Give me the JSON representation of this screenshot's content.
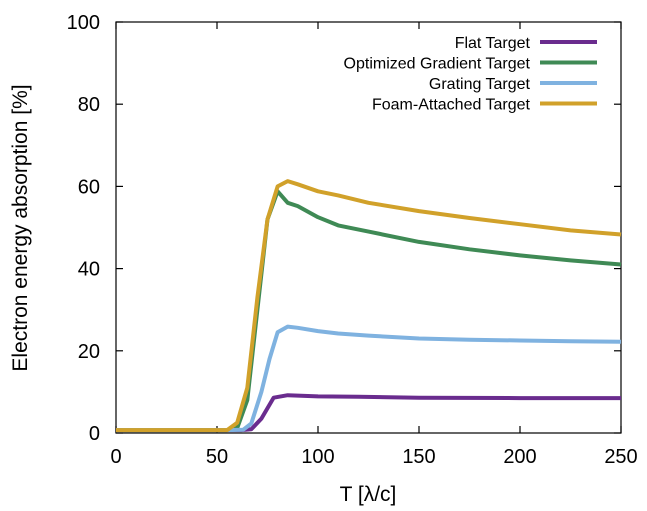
{
  "chart_data": {
    "type": "line",
    "title": "",
    "xlabel": "T [λ/c]",
    "ylabel": "Electron energy absorption [%]",
    "xlim": [
      0,
      250
    ],
    "ylim": [
      0,
      100
    ],
    "xticks": [
      0,
      50,
      100,
      150,
      200,
      250
    ],
    "yticks": [
      0,
      20,
      40,
      60,
      80,
      100
    ],
    "xtick_labels": [
      "0",
      "50",
      "100",
      "150",
      "200",
      "250"
    ],
    "ytick_labels": [
      "0",
      "20",
      "40",
      "60",
      "80",
      "100"
    ],
    "grid": false,
    "legend_position": "top-right",
    "series": [
      {
        "name": "Flat Target",
        "color": "#6a2c8e",
        "x": [
          0,
          55,
          62,
          67,
          72,
          78,
          85,
          100,
          120,
          150,
          200,
          250
        ],
        "y": [
          0.7,
          0.7,
          0.7,
          0.9,
          3.5,
          8.6,
          9.2,
          8.9,
          8.8,
          8.6,
          8.5,
          8.5
        ]
      },
      {
        "name": "Optimized Gradient Target",
        "color": "#3f8a55",
        "x": [
          0,
          55,
          60,
          65,
          70,
          75,
          80,
          85,
          90,
          100,
          110,
          125,
          150,
          175,
          200,
          225,
          250
        ],
        "y": [
          0.7,
          0.7,
          1.2,
          8,
          30,
          52,
          58.8,
          56,
          55.2,
          52.5,
          50.5,
          49,
          46.5,
          44.7,
          43.2,
          42,
          41
        ]
      },
      {
        "name": "Grating Target",
        "color": "#7fb2e0",
        "x": [
          0,
          55,
          63,
          67,
          72,
          76,
          80,
          85,
          90,
          100,
          110,
          125,
          150,
          175,
          200,
          225,
          250
        ],
        "y": [
          0.7,
          0.7,
          0.8,
          2.3,
          10,
          18,
          24.5,
          25.9,
          25.6,
          24.8,
          24.2,
          23.7,
          23,
          22.7,
          22.5,
          22.3,
          22.2
        ]
      },
      {
        "name": "Foam-Attached Target",
        "color": "#d1a12a",
        "x": [
          0,
          55,
          60,
          65,
          70,
          75,
          80,
          85,
          90,
          100,
          110,
          125,
          150,
          175,
          200,
          225,
          250
        ],
        "y": [
          0.7,
          0.7,
          2.5,
          11,
          33,
          52,
          60,
          61.3,
          60.5,
          58.8,
          57.8,
          56,
          54,
          52.3,
          50.8,
          49.3,
          48.3
        ]
      }
    ]
  }
}
